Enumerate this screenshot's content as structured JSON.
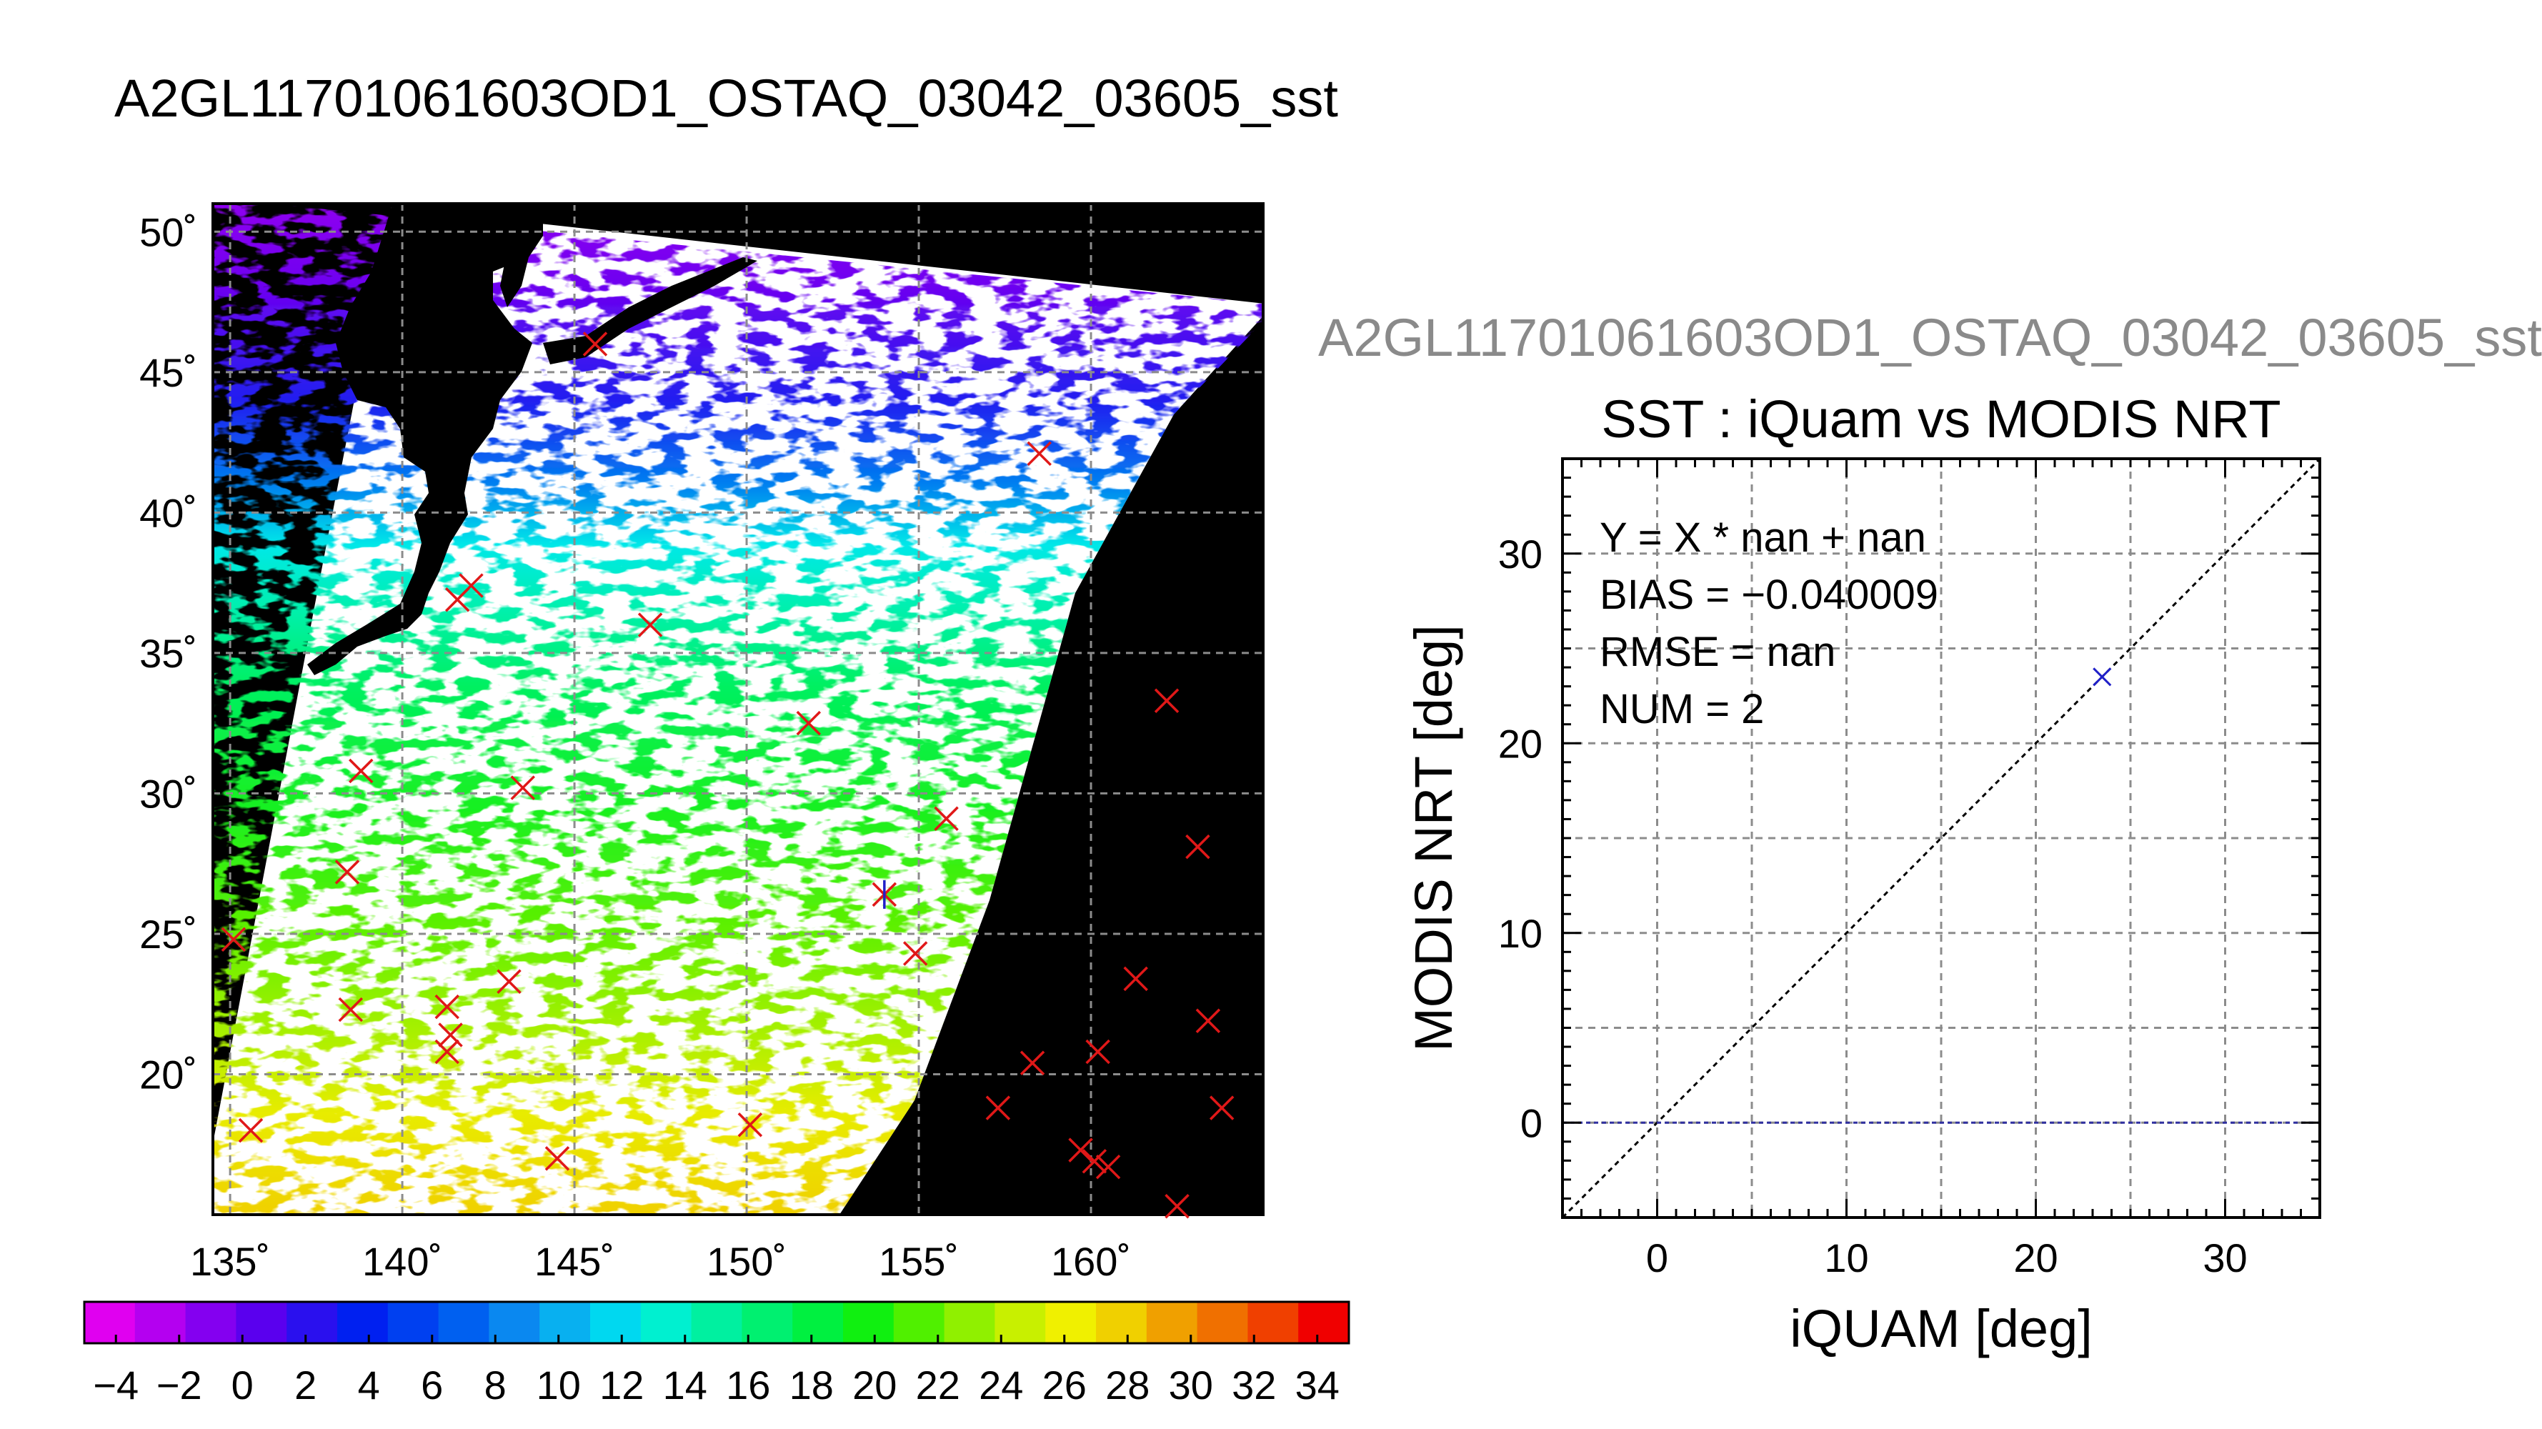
{
  "page_title": "A2GL11701061603OD1_OSTAQ_03042_03605_sst",
  "stamp_title": "A2GL11701061603OD1_OSTAQ_03042_03605_sst",
  "colors": {
    "match_marker": "#e01818",
    "scatter_marker": "#2020c8",
    "zero_line": "#3030a0",
    "land": "#000000"
  },
  "chart_data": [
    {
      "type": "heatmap",
      "name": "sst-map",
      "title": "",
      "xlabel": "",
      "ylabel": "",
      "xlim": [
        134.5,
        165
      ],
      "ylim": [
        15,
        51
      ],
      "x_ticks": [
        135,
        140,
        145,
        150,
        155,
        160
      ],
      "y_ticks": [
        20,
        25,
        30,
        35,
        40,
        45,
        50
      ],
      "x_tick_labels": [
        "135˚",
        "140˚",
        "145˚",
        "150˚",
        "155˚",
        "160˚"
      ],
      "y_tick_labels": [
        "20˚",
        "25˚",
        "30˚",
        "35˚",
        "40˚",
        "45˚",
        "50˚"
      ],
      "grid": true,
      "match_points": [
        [
          135.1,
          24.8
        ],
        [
          135.6,
          18.0
        ],
        [
          138.5,
          22.3
        ],
        [
          138.4,
          27.2
        ],
        [
          138.8,
          30.8
        ],
        [
          141.3,
          22.4
        ],
        [
          141.4,
          21.4
        ],
        [
          141.3,
          20.8
        ],
        [
          143.1,
          23.3
        ],
        [
          143.5,
          30.2
        ],
        [
          141.6,
          36.9
        ],
        [
          142.0,
          37.4
        ],
        [
          145.6,
          46.0
        ],
        [
          147.2,
          36.0
        ],
        [
          151.8,
          32.5
        ],
        [
          154.0,
          26.4
        ],
        [
          154.9,
          24.3
        ],
        [
          155.8,
          29.1
        ],
        [
          157.3,
          18.8
        ],
        [
          158.3,
          20.4
        ],
        [
          158.5,
          42.1
        ],
        [
          159.7,
          17.3
        ],
        [
          160.1,
          16.9
        ],
        [
          160.5,
          16.7
        ],
        [
          160.2,
          20.8
        ],
        [
          161.3,
          23.4
        ],
        [
          162.2,
          33.3
        ],
        [
          162.5,
          15.3
        ],
        [
          163.1,
          28.1
        ],
        [
          163.4,
          21.9
        ],
        [
          163.8,
          18.8
        ],
        [
          144.5,
          17.0
        ],
        [
          150.1,
          18.2
        ]
      ],
      "highlight_point": [
        154.0,
        26.4
      ]
    },
    {
      "type": "scatter",
      "name": "sst-scatter",
      "title": "SST : iQuam vs MODIS NRT",
      "xlabel": "iQUAM [deg]",
      "ylabel": "MODIS NRT [deg]",
      "xlim": [
        -5,
        35
      ],
      "ylim": [
        -5,
        35
      ],
      "x_ticks": [
        0,
        10,
        20,
        30
      ],
      "y_ticks": [
        0,
        10,
        20,
        30
      ],
      "grid": true,
      "points": [
        [
          23.5,
          23.5
        ]
      ],
      "reference_line": "Y = X",
      "zero_line_y": 0,
      "stats": [
        "Y = X * nan + nan",
        "BIAS = −0.040009",
        "RMSE = nan",
        "NUM = 2"
      ]
    },
    {
      "type": "colorbar",
      "name": "sst-colorbar",
      "range": [
        -5,
        35
      ],
      "tick_labels": [
        "−4",
        "−2",
        "0",
        "2",
        "4",
        "6",
        "8",
        "10",
        "12",
        "14",
        "16",
        "18",
        "20",
        "22",
        "24",
        "26",
        "28",
        "30",
        "32",
        "34"
      ],
      "colors": [
        "#e000f0",
        "#b400f0",
        "#8400f0",
        "#5a00ee",
        "#2a10ee",
        "#0020f0",
        "#0040f0",
        "#0060f0",
        "#0a88f0",
        "#08b0f0",
        "#00d8f0",
        "#00f0d0",
        "#00f0a0",
        "#00f070",
        "#00f040",
        "#10f010",
        "#50f000",
        "#90f000",
        "#c8f000",
        "#f0f000",
        "#f0d000",
        "#f0a000",
        "#f07000",
        "#f04000",
        "#f00000"
      ]
    }
  ]
}
